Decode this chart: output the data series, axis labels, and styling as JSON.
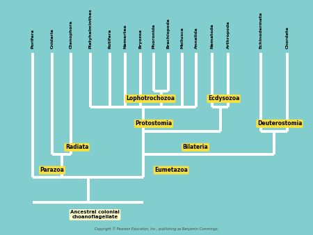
{
  "bg_color": "#82cece",
  "line_color": "#ffffff",
  "label_bg": "#f5e040",
  "label_bg_root": "#ffffcc",
  "line_width": 2.8,
  "taxa": [
    "Porifera",
    "Cnidaria",
    "Ctenophora",
    "Platyhelminthes",
    "Rotifera",
    "Nemertea",
    "Bryozoa",
    "Phoronida",
    "Brachiopoda",
    "Mollusca",
    "Annelida",
    "Nematoda",
    "Arthropoda",
    "Echinodermata",
    "Chordata"
  ],
  "copyright": "Copyright © Pearson Education, Inc., publishing as Benjamin Cummings."
}
